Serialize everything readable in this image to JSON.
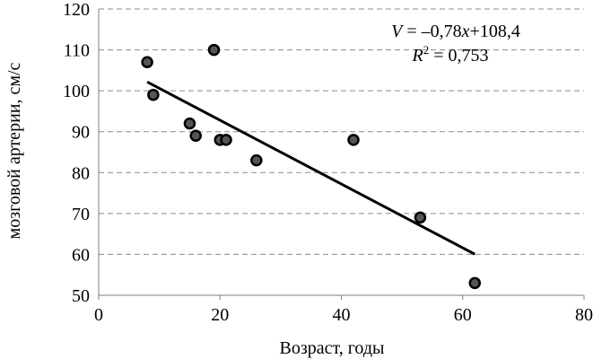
{
  "chart_data": {
    "type": "scatter",
    "title": "",
    "xlabel": "Возраст, годы",
    "ylabel": "мозговой артерии, см/с",
    "xlim": [
      0,
      80
    ],
    "ylim": [
      50,
      120
    ],
    "x_ticks": [
      0,
      20,
      40,
      60,
      80
    ],
    "y_ticks": [
      50,
      60,
      70,
      80,
      90,
      100,
      110,
      120
    ],
    "grid": "horizontal dashed",
    "legend": "none",
    "series": [
      {
        "points": [
          {
            "x": 8,
            "y": 107
          },
          {
            "x": 9,
            "y": 99
          },
          {
            "x": 15,
            "y": 92
          },
          {
            "x": 16,
            "y": 89
          },
          {
            "x": 19,
            "y": 110
          },
          {
            "x": 20,
            "y": 88
          },
          {
            "x": 21,
            "y": 88
          },
          {
            "x": 26,
            "y": 83
          },
          {
            "x": 42,
            "y": 88
          },
          {
            "x": 53,
            "y": 69
          },
          {
            "x": 62,
            "y": 53
          }
        ],
        "marker_fill": "#555555",
        "marker_stroke": "#000000"
      }
    ],
    "trendline": {
      "slope": -0.78,
      "intercept": 108.4,
      "x_range": [
        8,
        62
      ],
      "color": "#000000"
    },
    "annotations": {
      "equation_lhs": "V",
      "equation_eq": " = –0,78",
      "equation_var": "x",
      "equation_rest": "+108,4",
      "r2_label": "R",
      "r2_sup": "2",
      "r2_value": " = 0,753"
    }
  }
}
